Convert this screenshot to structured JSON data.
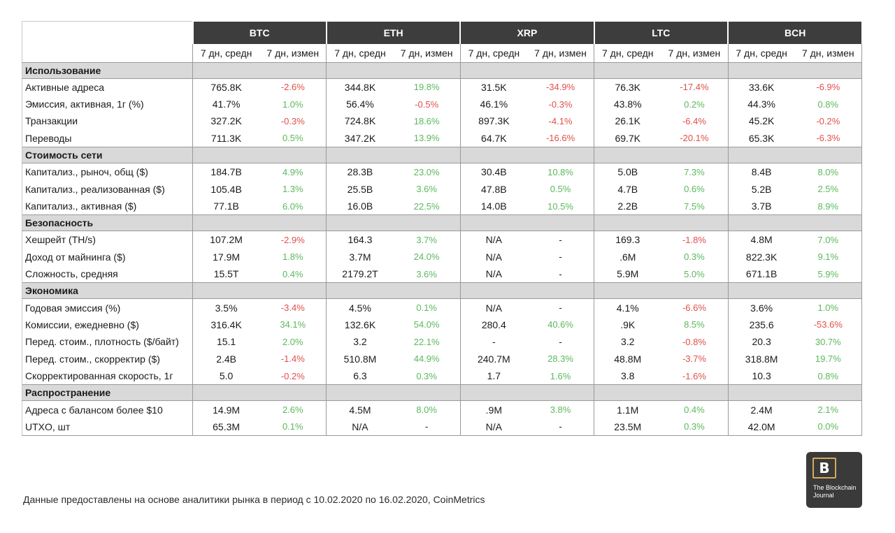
{
  "coins": [
    "BTC",
    "ETH",
    "XRP",
    "LTC",
    "BCH"
  ],
  "subheaders": {
    "avg": "7 дн, средн",
    "chg": "7 дн, измен"
  },
  "sections": [
    {
      "title": "Использование",
      "rows": [
        {
          "label": "Активные адреса",
          "cells": [
            [
              "765.8K",
              "-2.6%"
            ],
            [
              "344.8K",
              "19.8%"
            ],
            [
              "31.5K",
              "-34.9%"
            ],
            [
              "76.3K",
              "-17.4%"
            ],
            [
              "33.6K",
              "-6.9%"
            ]
          ]
        },
        {
          "label": "Эмиссия, активная, 1г (%)",
          "cells": [
            [
              "41.7%",
              "1.0%"
            ],
            [
              "56.4%",
              "-0.5%"
            ],
            [
              "46.1%",
              "-0.3%"
            ],
            [
              "43.8%",
              "0.2%"
            ],
            [
              "44.3%",
              "0.8%"
            ]
          ]
        },
        {
          "label": "Транзакции",
          "cells": [
            [
              "327.2K",
              "-0.3%"
            ],
            [
              "724.8K",
              "18.6%"
            ],
            [
              "897.3K",
              "-4.1%"
            ],
            [
              "26.1K",
              "-6.4%"
            ],
            [
              "45.2K",
              "-0.2%"
            ]
          ]
        },
        {
          "label": "Переводы",
          "cells": [
            [
              "711.3K",
              "0.5%"
            ],
            [
              "347.2K",
              "13.9%"
            ],
            [
              "64.7K",
              "-16.6%"
            ],
            [
              "69.7K",
              "-20.1%"
            ],
            [
              "65.3K",
              "-6.3%"
            ]
          ]
        }
      ]
    },
    {
      "title": "Стоимость сети",
      "rows": [
        {
          "label": "Капитализ., рыноч, общ ($)",
          "cells": [
            [
              "184.7B",
              "4.9%"
            ],
            [
              "28.3B",
              "23.0%"
            ],
            [
              "30.4B",
              "10.8%"
            ],
            [
              "5.0B",
              "7.3%"
            ],
            [
              "8.4B",
              "8.0%"
            ]
          ]
        },
        {
          "label": "Капитализ., реализованная ($)",
          "cells": [
            [
              "105.4B",
              "1.3%"
            ],
            [
              "25.5B",
              "3.6%"
            ],
            [
              "47.8B",
              "0.5%"
            ],
            [
              "4.7B",
              "0.6%"
            ],
            [
              "5.2B",
              "2.5%"
            ]
          ]
        },
        {
          "label": "Капитализ., активная ($)",
          "cells": [
            [
              "77.1B",
              "6.0%"
            ],
            [
              "16.0B",
              "22.5%"
            ],
            [
              "14.0B",
              "10.5%"
            ],
            [
              "2.2B",
              "7.5%"
            ],
            [
              "3.7B",
              "8.9%"
            ]
          ]
        }
      ]
    },
    {
      "title": "Безопасность",
      "rows": [
        {
          "label": "Хешрейт (TH/s)",
          "cells": [
            [
              "107.2M",
              "-2.9%"
            ],
            [
              "164.3",
              "3.7%"
            ],
            [
              "N/A",
              "-"
            ],
            [
              "169.3",
              "-1.8%"
            ],
            [
              "4.8M",
              "7.0%"
            ]
          ]
        },
        {
          "label": "Доход от майнинга ($)",
          "cells": [
            [
              "17.9M",
              "1.8%"
            ],
            [
              "3.7M",
              "24.0%"
            ],
            [
              "N/A",
              "-"
            ],
            [
              ".6M",
              "0.3%"
            ],
            [
              "822.3K",
              "9.1%"
            ]
          ]
        },
        {
          "label": "Сложность, средняя",
          "cells": [
            [
              "15.5T",
              "0.4%"
            ],
            [
              "2179.2T",
              "3.6%"
            ],
            [
              "N/A",
              "-"
            ],
            [
              "5.9M",
              "5.0%"
            ],
            [
              "671.1B",
              "5.9%"
            ]
          ]
        }
      ]
    },
    {
      "title": "Экономика",
      "rows": [
        {
          "label": "Годовая эмиссия (%)",
          "cells": [
            [
              "3.5%",
              "-3.4%"
            ],
            [
              "4.5%",
              "0.1%"
            ],
            [
              "N/A",
              "-"
            ],
            [
              "4.1%",
              "-6.6%"
            ],
            [
              "3.6%",
              "1.0%"
            ]
          ]
        },
        {
          "label": "Комиссии, ежедневно ($)",
          "cells": [
            [
              "316.4K",
              "34.1%"
            ],
            [
              "132.6K",
              "54.0%"
            ],
            [
              "280.4",
              "40.6%"
            ],
            [
              ".9K",
              "8.5%"
            ],
            [
              "235.6",
              "-53.6%"
            ]
          ]
        },
        {
          "label": "Перед. стоим., плотность ($/байт)",
          "cells": [
            [
              "15.1",
              "2.0%"
            ],
            [
              "3.2",
              "22.1%"
            ],
            [
              "-",
              "-"
            ],
            [
              "3.2",
              "-0.8%"
            ],
            [
              "20.3",
              "30.7%"
            ]
          ]
        },
        {
          "label": "Перед. стоим., скорректир ($)",
          "cells": [
            [
              "2.4B",
              "-1.4%"
            ],
            [
              "510.8M",
              "44.9%"
            ],
            [
              "240.7M",
              "28.3%"
            ],
            [
              "48.8M",
              "-3.7%"
            ],
            [
              "318.8M",
              "19.7%"
            ]
          ]
        },
        {
          "label": "Скорректированная скорость, 1г",
          "cells": [
            [
              "5.0",
              "-0.2%"
            ],
            [
              "6.3",
              "0.3%"
            ],
            [
              "1.7",
              "1.6%"
            ],
            [
              "3.8",
              "-1.6%"
            ],
            [
              "10.3",
              "0.8%"
            ]
          ]
        }
      ]
    },
    {
      "title": "Распространение",
      "rows": [
        {
          "label": "Адреса с балансом более $10",
          "cells": [
            [
              "14.9M",
              "2.6%"
            ],
            [
              "4.5M",
              "8.0%"
            ],
            [
              ".9M",
              "3.8%"
            ],
            [
              "1.1M",
              "0.4%"
            ],
            [
              "2.4M",
              "2.1%"
            ]
          ]
        },
        {
          "label": "UTXO, шт",
          "cells": [
            [
              "65.3M",
              "0.1%"
            ],
            [
              "N/A",
              "-"
            ],
            [
              "N/A",
              "-"
            ],
            [
              "23.5M",
              "0.3%"
            ],
            [
              "42.0M",
              "0.0%"
            ]
          ]
        }
      ]
    }
  ],
  "colors": {
    "positive": "#5cb85c",
    "negative": "#e0504a",
    "header_bg": "#3d3d3d",
    "section_bg": "#d9d9d9"
  },
  "footnote": "Данные предоставлены на основе аналитики рынка в период с 10.02.2020 по 16.02.2020, CoinMetrics",
  "logo": {
    "mark": "B",
    "line1": "The Blockchain",
    "line2": "Journal"
  }
}
